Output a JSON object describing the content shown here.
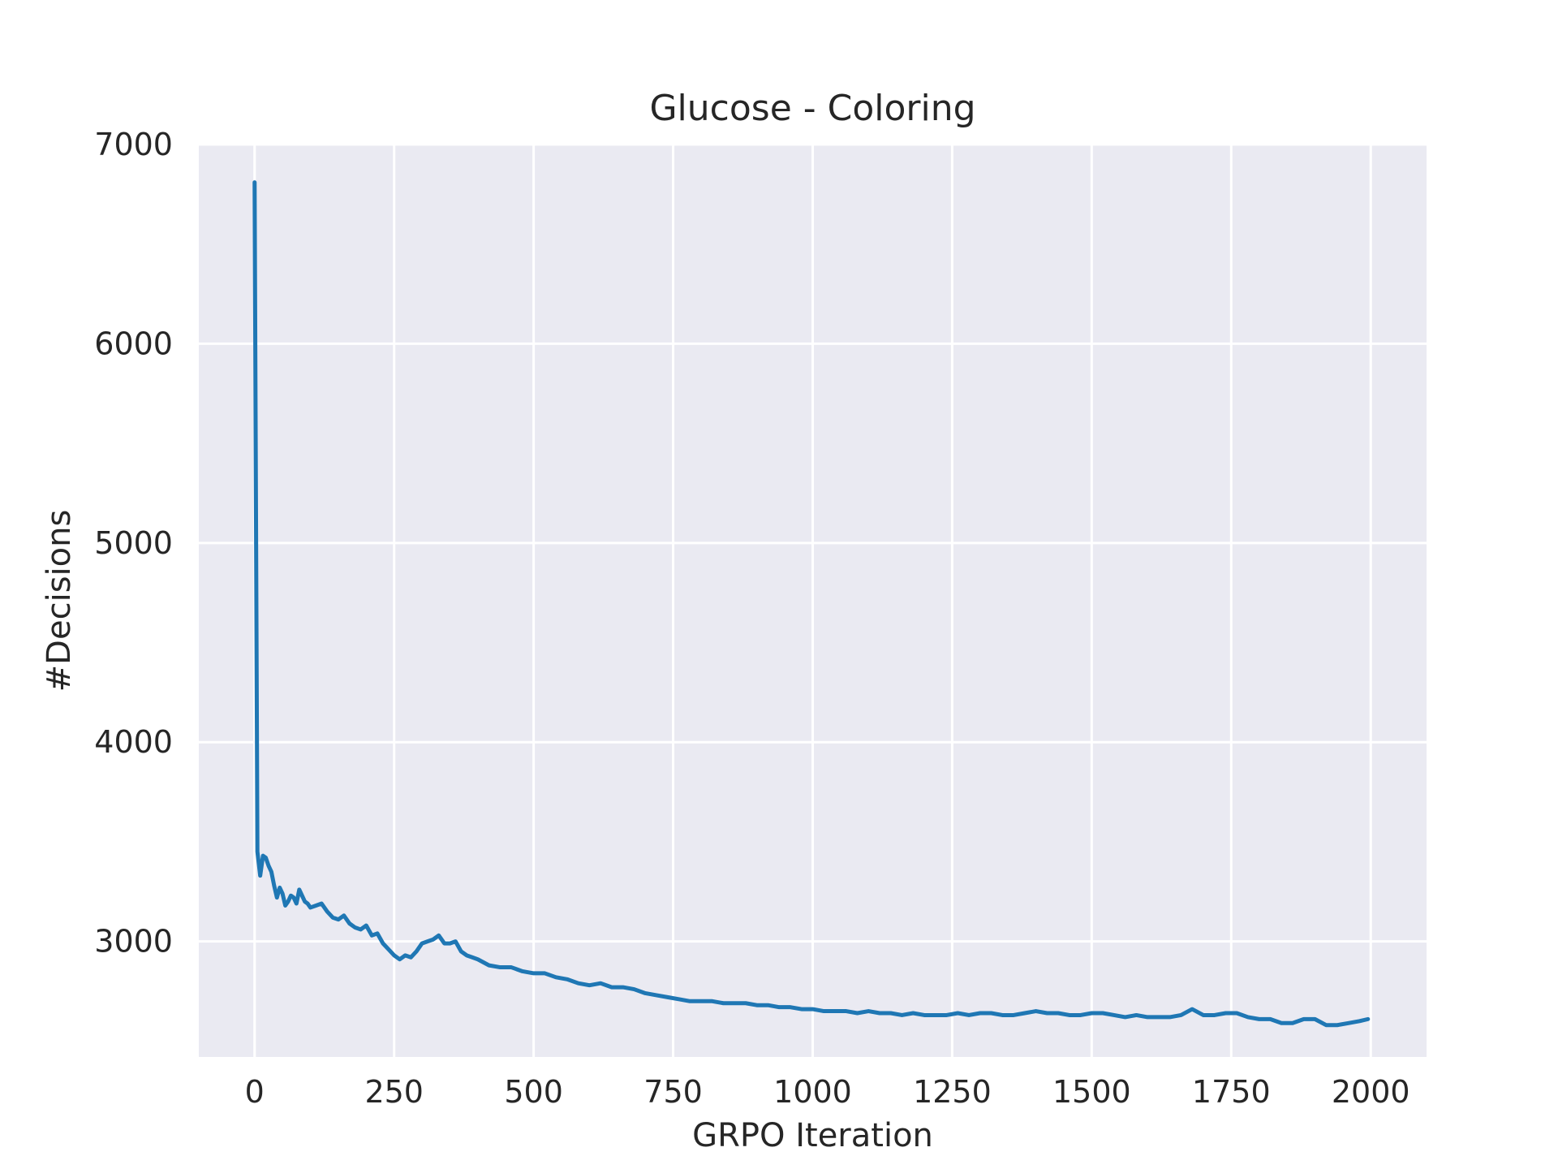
{
  "chart_data": {
    "type": "line",
    "title": "Glucose - Coloring",
    "xlabel": "GRPO Iteration",
    "ylabel": "#Decisions",
    "xlim": [
      -100,
      2100
    ],
    "ylim": [
      2420,
      7000
    ],
    "grid": true,
    "x_ticks": [
      0,
      250,
      500,
      750,
      1000,
      1250,
      1500,
      1750,
      2000
    ],
    "y_ticks": [
      3000,
      4000,
      5000,
      6000,
      7000
    ],
    "colors": {
      "background": "#EAEAF2",
      "grid": "#FFFFFF",
      "line": "#1F77B4",
      "text": "#262626"
    },
    "series": [
      {
        "x": [
          0,
          5,
          10,
          15,
          20,
          25,
          30,
          35,
          40,
          45,
          50,
          55,
          60,
          65,
          70,
          75,
          80,
          85,
          90,
          95,
          100,
          110,
          120,
          130,
          140,
          150,
          160,
          170,
          180,
          190,
          200,
          210,
          220,
          230,
          240,
          250,
          260,
          270,
          280,
          290,
          300,
          310,
          320,
          330,
          340,
          350,
          360,
          370,
          380,
          390,
          400,
          420,
          440,
          460,
          480,
          500,
          520,
          540,
          560,
          580,
          600,
          620,
          640,
          660,
          680,
          700,
          720,
          740,
          760,
          780,
          800,
          820,
          840,
          860,
          880,
          900,
          920,
          940,
          960,
          980,
          1000,
          1020,
          1040,
          1060,
          1080,
          1100,
          1120,
          1140,
          1160,
          1180,
          1200,
          1220,
          1240,
          1260,
          1280,
          1300,
          1320,
          1340,
          1360,
          1380,
          1400,
          1420,
          1440,
          1460,
          1480,
          1500,
          1520,
          1540,
          1560,
          1580,
          1600,
          1620,
          1640,
          1660,
          1680,
          1700,
          1720,
          1740,
          1760,
          1780,
          1800,
          1820,
          1840,
          1860,
          1880,
          1900,
          1920,
          1940,
          1960,
          1980,
          1995
        ],
        "y": [
          6810,
          3450,
          3330,
          3430,
          3420,
          3380,
          3350,
          3280,
          3220,
          3270,
          3240,
          3180,
          3200,
          3230,
          3220,
          3190,
          3260,
          3230,
          3200,
          3190,
          3170,
          3180,
          3190,
          3150,
          3120,
          3110,
          3130,
          3090,
          3070,
          3060,
          3080,
          3030,
          3040,
          2990,
          2960,
          2930,
          2910,
          2930,
          2920,
          2950,
          2990,
          3000,
          3010,
          3030,
          2990,
          2990,
          3000,
          2950,
          2930,
          2920,
          2910,
          2880,
          2870,
          2870,
          2850,
          2840,
          2840,
          2820,
          2810,
          2790,
          2780,
          2790,
          2770,
          2770,
          2760,
          2740,
          2730,
          2720,
          2710,
          2700,
          2700,
          2700,
          2690,
          2690,
          2690,
          2680,
          2680,
          2670,
          2670,
          2660,
          2660,
          2650,
          2650,
          2650,
          2640,
          2650,
          2640,
          2640,
          2630,
          2640,
          2630,
          2630,
          2630,
          2640,
          2630,
          2640,
          2640,
          2630,
          2630,
          2640,
          2650,
          2640,
          2640,
          2630,
          2630,
          2640,
          2640,
          2630,
          2620,
          2630,
          2620,
          2620,
          2620,
          2630,
          2660,
          2630,
          2630,
          2640,
          2640,
          2620,
          2610,
          2610,
          2590,
          2590,
          2610,
          2610,
          2580,
          2580,
          2590,
          2600,
          2610
        ]
      }
    ]
  }
}
